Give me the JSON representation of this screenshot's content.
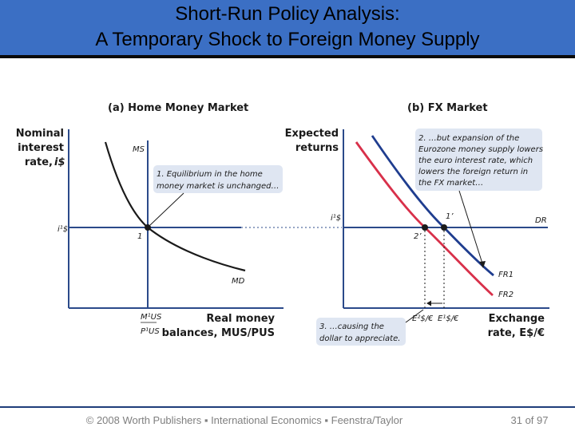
{
  "slide": {
    "title_line1": "Short-Run Policy Analysis:",
    "title_line2": "A Temporary Shock to Foreign Money Supply",
    "footer": "© 2008 Worth Publishers ▪ International Economics ▪ Feenstra/Taylor",
    "page": "31 of 97",
    "colors": {
      "title_bar": "#3b6fc4",
      "curve_ms_md": "#1a1a1a",
      "axis": "#2b4a8a",
      "fr1": "#1f3d8f",
      "fr2": "#d8304a",
      "callout": "#dfe6f2"
    }
  },
  "panel_a": {
    "heading": "(a) Home Money Market",
    "yaxis_line1": "Nominal",
    "yaxis_line2": "interest",
    "yaxis_line3": "rate, ",
    "yaxis_sym": "i$",
    "xaxis_line1": "Real money",
    "xaxis_line2": "balances, MUS/PUS",
    "ms_label": "MS",
    "md_label": "MD",
    "point_label": "1",
    "rate_tick": "i¹$",
    "money_tick_num": "M¹US",
    "money_tick_den": "P¹US",
    "note_line1": "1. Equilibrium in the home",
    "note_line2": "money market is unchanged…"
  },
  "panel_b": {
    "heading": "(b) FX Market",
    "yaxis_line1": "Expected",
    "yaxis_line2": "returns",
    "rate_tick": "i¹$",
    "dr_label": "DR",
    "fr1_label": "FR1",
    "fr2_label": "FR2",
    "point_1p": "1’",
    "point_2p": "2’",
    "xaxis_line1": "Exchange",
    "xaxis_line2": "rate, E$/€",
    "e2_tick": "E²$/€",
    "e1_tick": "E¹$/€",
    "note2_line1": "2. …but expansion of the",
    "note2_line2": "Eurozone money supply lowers",
    "note2_line3": "the euro interest rate, which",
    "note2_line4": "lowers the foreign return in",
    "note2_line5": "the FX market…",
    "note3_line1": "3. …causing the",
    "note3_line2": "dollar to appreciate."
  }
}
